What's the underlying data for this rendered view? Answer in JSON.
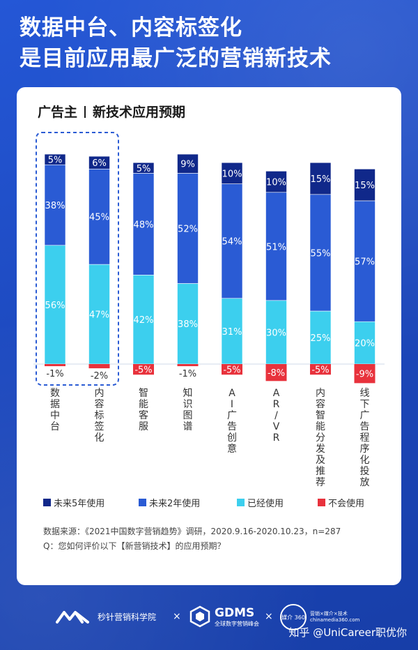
{
  "header": {
    "line1": "数据中台、内容标签化",
    "line2": "是目前应用最广泛的营销新技术"
  },
  "card": {
    "subtitle_left": "广告主",
    "subtitle_right": "新技术应用预期"
  },
  "colors": {
    "future5": "#10288a",
    "future2": "#2a5bd4",
    "used": "#3ccfee",
    "never": "#e8323c",
    "background": "#1e4ec4",
    "highlight_border": "#2a5bd4"
  },
  "chart_data": {
    "type": "bar",
    "stacked": true,
    "categories": [
      "数据中台",
      "内容标签化",
      "智能客服",
      "知识图谱",
      "AI广告创意",
      "AR/VR",
      "内容智能分发及推荐",
      "线下广告程序化投放"
    ],
    "series": [
      {
        "name": "未来5年使用",
        "values": [
          5,
          6,
          5,
          9,
          10,
          10,
          15,
          15
        ],
        "labels": [
          "5%",
          "6%",
          "5%",
          "9%",
          "10%",
          "10%",
          "15%",
          "15%"
        ]
      },
      {
        "name": "未来2年使用",
        "values": [
          38,
          45,
          48,
          52,
          54,
          51,
          55,
          57
        ],
        "labels": [
          "38%",
          "45%",
          "48%",
          "52%",
          "54%",
          "51%",
          "55%",
          "57%"
        ]
      },
      {
        "name": "已经使用",
        "values": [
          56,
          47,
          42,
          38,
          31,
          30,
          25,
          20
        ],
        "labels": [
          "56%",
          "47%",
          "42%",
          "38%",
          "31%",
          "30%",
          "25%",
          "20%"
        ]
      },
      {
        "name": "不会使用",
        "values": [
          -1,
          -2,
          -5,
          -1,
          -5,
          -8,
          -5,
          -9
        ],
        "labels": [
          "-1%",
          "-2%",
          "-5%",
          "-1%",
          "-5%",
          "-8%",
          "-5%",
          "-9%"
        ]
      }
    ],
    "highlighted_categories": [
      "数据中台",
      "内容标签化"
    ],
    "legend_position": "bottom"
  },
  "legend": [
    {
      "label": "未来5年使用",
      "color_key": "future5"
    },
    {
      "label": "未来2年使用",
      "color_key": "future2"
    },
    {
      "label": "已经使用",
      "color_key": "used"
    },
    {
      "label": "不会使用",
      "color_key": "never"
    }
  ],
  "source": {
    "line1": "数据来源：《2021中国数字营销趋势》调研，2020.9.16-2020.10.23，n=287",
    "line2": "Q：您如何评价以下【新营销技术】的应用预期？"
  },
  "footer": {
    "brand1": "秒针营销科学院",
    "times": "×",
    "brand2": "GDMS",
    "brand2_sub": "全球数字营销峰会",
    "brand3_sub": "营销×媒介×技术",
    "brand3_sub2": "chinamedia360.com",
    "brand3_logo": "媒介 360",
    "watermark": "知乎 @UniCareer职优你"
  }
}
